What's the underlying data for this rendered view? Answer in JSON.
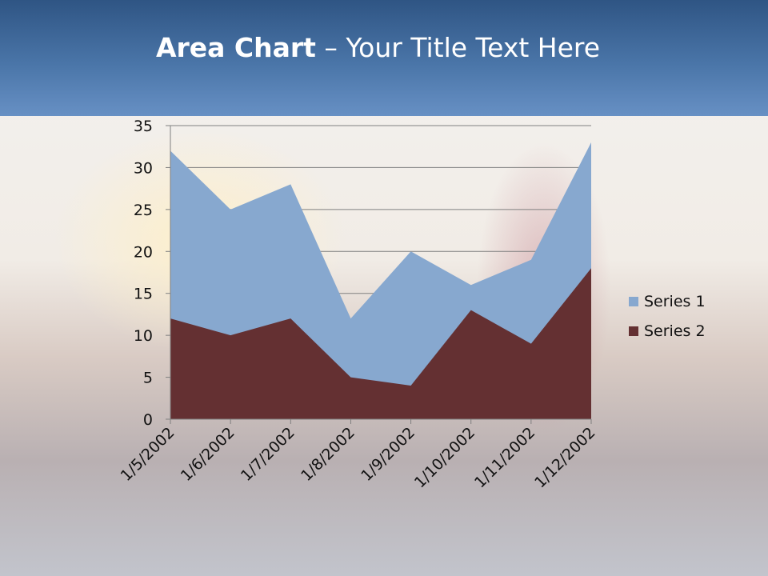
{
  "slide": {
    "title_bold": "Area Chart",
    "title_rest": " – Your Title Text Here"
  },
  "chart_data": {
    "type": "area",
    "categories": [
      "1/5/2002",
      "1/6/2002",
      "1/7/2002",
      "1/8/2002",
      "1/9/2002",
      "1/10/2002",
      "1/11/2002",
      "1/12/2002"
    ],
    "series": [
      {
        "name": "Series 1",
        "values": [
          32,
          25,
          28,
          12,
          20,
          16,
          19,
          33
        ],
        "color": "#87a8cf"
      },
      {
        "name": "Series 2",
        "values": [
          12,
          10,
          12,
          5,
          4,
          13,
          9,
          18
        ],
        "color": "#643032"
      }
    ],
    "ylim": [
      0,
      35
    ],
    "yticks": [
      0,
      5,
      10,
      15,
      20,
      25,
      30,
      35
    ],
    "grid": true,
    "legend": "right"
  }
}
